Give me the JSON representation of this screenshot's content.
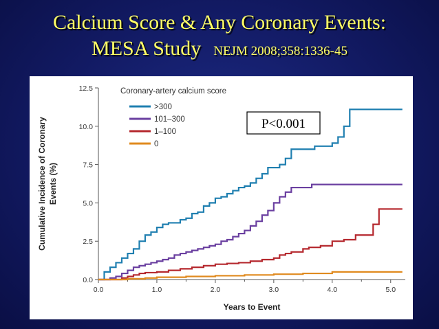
{
  "slide": {
    "title_line1": "Calcium Score & Any Coronary Events:",
    "title_line2": "MESA Study",
    "citation": "NEJM 2008;358:1336-45"
  },
  "colors": {
    "background": "#121a63",
    "title": "#ffff66",
    "series": [
      "#1f7fb0",
      "#6a3fa0",
      "#b5282e",
      "#e08a1e"
    ]
  },
  "chart_data": {
    "type": "line",
    "step": true,
    "xlabel": "Years to Event",
    "ylabel": "Cumulative Incidence of Coronary Events (%)",
    "xlim": [
      0,
      5.25
    ],
    "ylim": [
      0,
      12.5
    ],
    "xticks": [
      "0.0",
      "1.0",
      "2.0",
      "3.0",
      "4.0",
      "5.0"
    ],
    "yticks": [
      "0.0",
      "2.5",
      "5.0",
      "7.5",
      "10.0",
      "12.5"
    ],
    "legend_title": "Coronary-artery calcium score",
    "legend_position": "top-left",
    "annotation": "P<0.001",
    "series": [
      {
        "name": ">300",
        "x": [
          0,
          0.1,
          0.2,
          0.3,
          0.4,
          0.5,
          0.6,
          0.7,
          0.8,
          0.9,
          1.0,
          1.1,
          1.2,
          1.4,
          1.5,
          1.6,
          1.7,
          1.8,
          1.9,
          2.0,
          2.1,
          2.2,
          2.3,
          2.4,
          2.5,
          2.6,
          2.7,
          2.8,
          2.9,
          3.0,
          3.1,
          3.2,
          3.3,
          3.5,
          3.7,
          3.9,
          4.0,
          4.1,
          4.2,
          4.3,
          5.2
        ],
        "y": [
          0,
          0.5,
          0.8,
          1.1,
          1.4,
          1.7,
          2.0,
          2.5,
          2.9,
          3.1,
          3.4,
          3.6,
          3.7,
          3.9,
          4.0,
          4.3,
          4.4,
          4.8,
          5.0,
          5.3,
          5.4,
          5.6,
          5.8,
          6.0,
          6.1,
          6.3,
          6.6,
          6.9,
          7.3,
          7.3,
          7.5,
          7.9,
          8.5,
          8.5,
          8.7,
          8.7,
          8.9,
          9.3,
          10.0,
          11.1,
          11.1
        ]
      },
      {
        "name": "101–300",
        "x": [
          0,
          0.2,
          0.3,
          0.4,
          0.5,
          0.6,
          0.7,
          0.8,
          0.9,
          1.0,
          1.1,
          1.2,
          1.3,
          1.4,
          1.5,
          1.6,
          1.7,
          1.8,
          1.9,
          2.0,
          2.1,
          2.2,
          2.3,
          2.4,
          2.5,
          2.6,
          2.7,
          2.8,
          2.9,
          3.0,
          3.1,
          3.2,
          3.3,
          3.5,
          3.65,
          5.2
        ],
        "y": [
          0,
          0.1,
          0.2,
          0.4,
          0.6,
          0.8,
          0.9,
          1.0,
          1.1,
          1.2,
          1.3,
          1.4,
          1.6,
          1.7,
          1.8,
          1.9,
          2.0,
          2.1,
          2.2,
          2.3,
          2.5,
          2.6,
          2.8,
          3.0,
          3.2,
          3.5,
          3.8,
          4.2,
          4.5,
          5.0,
          5.4,
          5.7,
          6.0,
          6.0,
          6.2,
          6.2
        ]
      },
      {
        "name": "1–100",
        "x": [
          0,
          0.4,
          0.5,
          0.6,
          0.7,
          0.8,
          1.0,
          1.2,
          1.4,
          1.6,
          1.8,
          2.0,
          2.2,
          2.4,
          2.6,
          2.8,
          3.0,
          3.1,
          3.2,
          3.3,
          3.5,
          3.6,
          3.8,
          4.0,
          4.2,
          4.4,
          4.7,
          4.8,
          5.2
        ],
        "y": [
          0,
          0.1,
          0.2,
          0.3,
          0.4,
          0.45,
          0.5,
          0.6,
          0.7,
          0.8,
          0.9,
          1.0,
          1.05,
          1.1,
          1.2,
          1.3,
          1.4,
          1.6,
          1.7,
          1.8,
          2.0,
          2.1,
          2.2,
          2.5,
          2.6,
          2.9,
          3.6,
          4.6,
          4.6
        ]
      },
      {
        "name": "0",
        "x": [
          0,
          0.5,
          0.8,
          1.0,
          1.5,
          2.0,
          2.5,
          3.0,
          3.5,
          4.0,
          5.2
        ],
        "y": [
          0,
          0.05,
          0.1,
          0.15,
          0.2,
          0.25,
          0.3,
          0.35,
          0.4,
          0.5,
          0.5
        ]
      }
    ]
  }
}
